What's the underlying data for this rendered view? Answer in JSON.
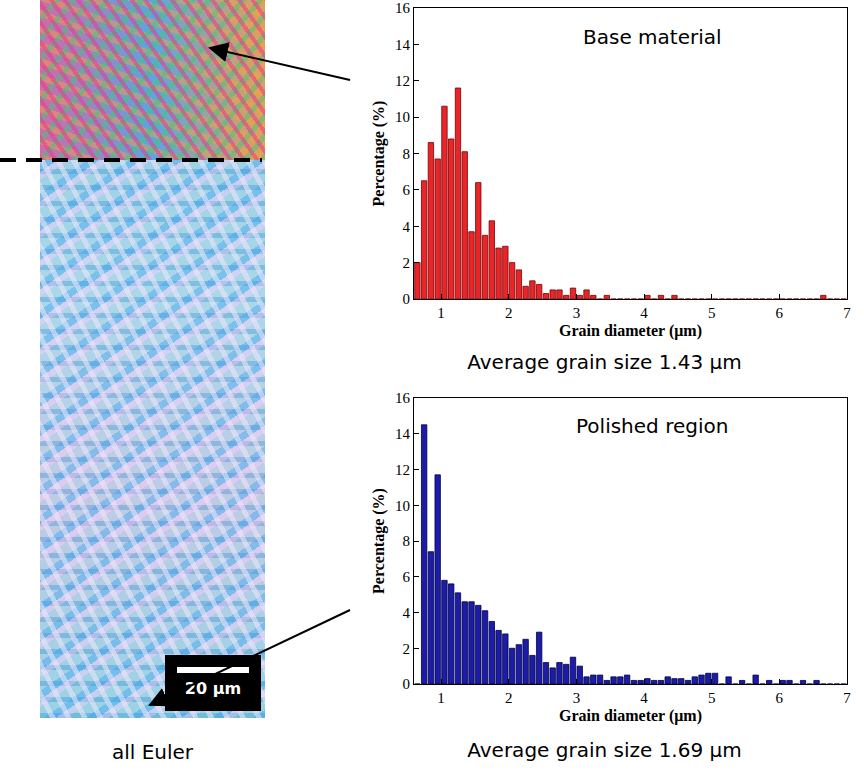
{
  "chart_data": [
    {
      "type": "histogram",
      "title": "Base material",
      "x_label": "Grain diameter (μm)",
      "y_label": "Percentage (%)",
      "annotations": [
        "Average grain size 1.43 μm"
      ],
      "bins": [
        0.6,
        0.7,
        0.8,
        0.9,
        1.0,
        1.1,
        1.2,
        1.3,
        1.4,
        1.5,
        1.6,
        1.7,
        1.8,
        1.9,
        2.0,
        2.1,
        2.2,
        2.3,
        2.4,
        2.5,
        2.6,
        2.7,
        2.8,
        2.9,
        3.0,
        3.1,
        3.2,
        3.3,
        3.4,
        3.5,
        3.6,
        3.7,
        3.8,
        3.9,
        4.0,
        4.1,
        4.2,
        4.3,
        4.4,
        4.5,
        4.6,
        4.7,
        4.8,
        4.9,
        5.0,
        5.1,
        5.2,
        5.3,
        5.4,
        5.5,
        5.6,
        5.7,
        5.8,
        5.9,
        6.0,
        6.1,
        6.2,
        6.3,
        6.4,
        6.5,
        6.6,
        6.7,
        6.8,
        6.9,
        7.0
      ],
      "values": [
        2,
        6.5,
        8.6,
        7.7,
        10.6,
        8.8,
        11.6,
        8.1,
        3.7,
        6.4,
        3.5,
        4.3,
        2.8,
        2.9,
        2.0,
        1.6,
        0.7,
        1.0,
        0.8,
        0.3,
        0.5,
        0.5,
        0.2,
        0.6,
        0.2,
        0.5,
        0.2,
        0,
        0.2,
        0,
        0,
        0,
        0,
        0,
        0.2,
        0,
        0.2,
        0,
        0.2,
        0,
        0,
        0,
        0,
        0,
        0,
        0,
        0,
        0,
        0,
        0,
        0,
        0,
        0,
        0,
        0,
        0,
        0,
        0,
        0,
        0,
        0.2,
        0,
        0,
        0
      ],
      "color": "#e8262a",
      "xlim": [
        0.6,
        7
      ],
      "xticks": [
        1,
        2,
        3,
        4,
        5,
        6,
        7
      ],
      "ylim": [
        0,
        16
      ],
      "yticks": [
        0,
        2,
        4,
        6,
        8,
        10,
        12,
        14,
        16
      ],
      "grid": false
    },
    {
      "type": "histogram",
      "title": "Polished region",
      "x_label": "Grain diameter (μm)",
      "y_label": "Percentage (%)",
      "annotations": [
        "Average grain size 1.69 μm"
      ],
      "bins": [
        0.6,
        0.7,
        0.8,
        0.9,
        1.0,
        1.1,
        1.2,
        1.3,
        1.4,
        1.5,
        1.6,
        1.7,
        1.8,
        1.9,
        2.0,
        2.1,
        2.2,
        2.3,
        2.4,
        2.5,
        2.6,
        2.7,
        2.8,
        2.9,
        3.0,
        3.1,
        3.2,
        3.3,
        3.4,
        3.5,
        3.6,
        3.7,
        3.8,
        3.9,
        4.0,
        4.1,
        4.2,
        4.3,
        4.4,
        4.5,
        4.6,
        4.7,
        4.8,
        4.9,
        5.0,
        5.1,
        5.2,
        5.3,
        5.4,
        5.5,
        5.6,
        5.7,
        5.8,
        5.9,
        6.0,
        6.1,
        6.2,
        6.3,
        6.4,
        6.5,
        6.6,
        6.7,
        6.8,
        6.9,
        7.0
      ],
      "values": [
        0,
        14.5,
        7.4,
        11.7,
        5.8,
        5.6,
        5.1,
        4.6,
        4.6,
        4.4,
        4.1,
        3.5,
        3.0,
        2.8,
        2.0,
        2.2,
        2.5,
        1.6,
        2.9,
        1.2,
        0.9,
        1.2,
        1.1,
        1.5,
        1.0,
        0.4,
        0.5,
        0.5,
        0.2,
        0.4,
        0.4,
        0.5,
        0.2,
        0.2,
        0.3,
        0.2,
        0.2,
        0.4,
        0.3,
        0.3,
        0.2,
        0.4,
        0.5,
        0.6,
        0.6,
        0,
        0.4,
        0,
        0.2,
        0,
        0.5,
        0,
        0.2,
        0,
        0.2,
        0.2,
        0,
        0.2,
        0,
        0.2,
        0,
        0,
        0,
        0
      ],
      "color": "#1c1ca8",
      "xlim": [
        0.6,
        7
      ],
      "xticks": [
        1,
        2,
        3,
        4,
        5,
        6,
        7
      ],
      "ylim": [
        0,
        16
      ],
      "yticks": [
        0,
        2,
        4,
        6,
        8,
        10,
        12,
        14,
        16
      ],
      "grid": false
    }
  ],
  "image": {
    "caption": "all Euler",
    "scale_bar": "20 μm"
  }
}
